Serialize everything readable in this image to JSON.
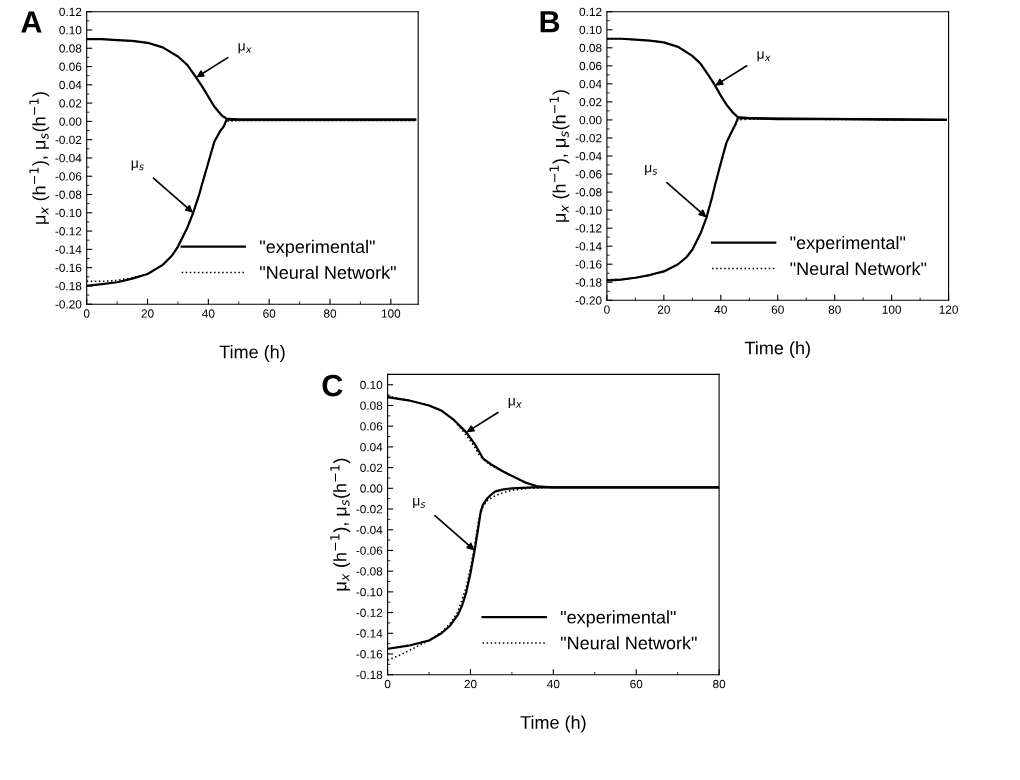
{
  "chart_data": [
    {
      "type": "line",
      "title": "A",
      "xlabel": "Time (h)",
      "ylabel": "μ$_{x}$ (h$^{−1}$), μ$_{s}$(h$^{−1}$)",
      "legend": "bottom right",
      "grid": false,
      "xlim": [
        0,
        109
      ],
      "xticks": [
        0,
        20,
        40,
        60,
        80,
        100
      ],
      "ylim": [
        -0.2,
        0.12
      ],
      "yticks": [
        {
          "value": -0.2,
          "label": "-0.20"
        },
        {
          "value": -0.18,
          "label": "-0.18"
        },
        {
          "value": -0.16,
          "label": "-0.16"
        },
        {
          "value": -0.14,
          "label": "-0.14"
        },
        {
          "value": -0.12,
          "label": "-0.12"
        },
        {
          "value": -0.1,
          "label": "-0.10"
        },
        {
          "value": -0.08,
          "label": "-0.08"
        },
        {
          "value": -0.06,
          "label": "-0.06"
        },
        {
          "value": -0.04,
          "label": "-0.04"
        },
        {
          "value": -0.02,
          "label": "-0.02"
        },
        {
          "value": 0,
          "label": "0.00"
        },
        {
          "value": 0.02,
          "label": "0.02"
        },
        {
          "value": 0.04,
          "label": "0.04"
        },
        {
          "value": 0.06,
          "label": "0.06"
        },
        {
          "value": 0.08,
          "label": "0.08"
        },
        {
          "value": 0.1,
          "label": "0.10"
        },
        {
          "value": 0.12,
          "label": "0.12"
        }
      ],
      "annotations": [
        {
          "text": "μ$_{x}$",
          "x": 36,
          "y": 0.048
        },
        {
          "text": "μ$_{s}$",
          "x": 35,
          "y": -0.1
        }
      ],
      "series": [
        {
          "name": "\"experimental\"",
          "color": "#000000",
          "line_style": "solid",
          "x": [
            0,
            5,
            10,
            15,
            20,
            25,
            30,
            33,
            36,
            38,
            40,
            42,
            44,
            45,
            46,
            50,
            60,
            80,
            108
          ],
          "values": [
            0.09,
            0.09,
            0.089,
            0.088,
            0.086,
            0.081,
            0.071,
            0.062,
            0.048,
            0.038,
            0.027,
            0.016,
            0.008,
            0.005,
            0.003,
            0.002,
            0.002,
            0.002,
            0.002
          ]
        },
        {
          "color": "#000000",
          "line_style": "solid",
          "x": [
            0,
            5,
            10,
            15,
            20,
            25,
            28,
            30,
            33,
            35,
            37,
            38,
            40,
            42,
            44,
            45,
            46,
            50,
            108
          ],
          "values": [
            -0.18,
            -0.178,
            -0.176,
            -0.172,
            -0.167,
            -0.157,
            -0.147,
            -0.137,
            -0.117,
            -0.1,
            -0.08,
            -0.068,
            -0.045,
            -0.022,
            -0.01,
            -0.006,
            0.002,
            0.002,
            0.002
          ]
        },
        {
          "name": "\"Neural Network\"",
          "color": "#000000",
          "line_style": "dotted",
          "x": [
            0,
            5,
            10,
            15,
            20,
            25,
            30,
            33,
            36,
            38,
            40,
            42,
            44,
            46,
            50,
            60,
            80,
            108
          ],
          "values": [
            0.09,
            0.09,
            0.089,
            0.088,
            0.086,
            0.081,
            0.071,
            0.062,
            0.048,
            0.038,
            0.027,
            0.016,
            0.008,
            0.002,
            0.001,
            0.001,
            0.001,
            0.001
          ]
        },
        {
          "color": "#000000",
          "line_style": "dotted",
          "x": [
            0,
            5,
            10,
            15,
            20,
            25,
            28,
            30,
            33,
            35,
            37,
            38,
            40,
            42,
            44,
            46,
            50,
            108
          ],
          "values": [
            -0.175,
            -0.175,
            -0.174,
            -0.171,
            -0.167,
            -0.157,
            -0.147,
            -0.137,
            -0.117,
            -0.1,
            -0.08,
            -0.068,
            -0.045,
            -0.022,
            -0.01,
            0.0,
            0.001,
            0.001
          ]
        }
      ]
    },
    {
      "type": "line",
      "title": "B",
      "xlabel": "Time (h)",
      "ylabel": "μ$_{x}$ (h$^{−1}$), μ$_{s}$(h$^{−1}$)",
      "legend": "bottom right",
      "grid": false,
      "xlim": [
        0,
        120
      ],
      "xticks": [
        0,
        20,
        40,
        60,
        80,
        100,
        120
      ],
      "ylim": [
        -0.2,
        0.12
      ],
      "yticks": [
        {
          "value": -0.2,
          "label": "-0.20"
        },
        {
          "value": -0.18,
          "label": "-0.18"
        },
        {
          "value": -0.16,
          "label": "-0.16"
        },
        {
          "value": -0.14,
          "label": "-0.14"
        },
        {
          "value": -0.12,
          "label": "-0.12"
        },
        {
          "value": -0.1,
          "label": "-0.10"
        },
        {
          "value": -0.08,
          "label": "-0.08"
        },
        {
          "value": -0.06,
          "label": "-0.06"
        },
        {
          "value": -0.04,
          "label": "-0.04"
        },
        {
          "value": -0.02,
          "label": "-0.02"
        },
        {
          "value": 0,
          "label": "0.00"
        },
        {
          "value": 0.02,
          "label": "0.02"
        },
        {
          "value": 0.04,
          "label": "0.04"
        },
        {
          "value": 0.06,
          "label": "0.06"
        },
        {
          "value": 0.08,
          "label": "0.08"
        },
        {
          "value": 0.1,
          "label": "0.10"
        },
        {
          "value": 0.12,
          "label": "0.12"
        }
      ],
      "annotations": [
        {
          "text": "μ$_{x}$",
          "x": 38,
          "y": 0.038
        },
        {
          "text": "μ$_{s}$",
          "x": 35,
          "y": -0.108
        }
      ],
      "series": [
        {
          "name": "\"experimental\"",
          "color": "#000000",
          "line_style": "solid",
          "x": [
            0,
            5,
            10,
            15,
            20,
            25,
            30,
            33,
            36,
            38,
            40,
            42,
            44,
            45,
            46,
            50,
            60,
            80,
            119
          ],
          "values": [
            0.09,
            0.09,
            0.089,
            0.088,
            0.086,
            0.081,
            0.071,
            0.062,
            0.048,
            0.038,
            0.027,
            0.017,
            0.009,
            0.006,
            0.003,
            0.002,
            0.001,
            0.001,
            0.0
          ]
        },
        {
          "color": "#000000",
          "line_style": "solid",
          "x": [
            0,
            5,
            10,
            15,
            20,
            25,
            28,
            30,
            33,
            35,
            37,
            38,
            40,
            42,
            44,
            45,
            46,
            50,
            119
          ],
          "values": [
            -0.178,
            -0.177,
            -0.175,
            -0.172,
            -0.168,
            -0.16,
            -0.152,
            -0.144,
            -0.125,
            -0.108,
            -0.085,
            -0.072,
            -0.048,
            -0.025,
            -0.012,
            -0.006,
            0.002,
            0.002,
            0.0
          ]
        },
        {
          "name": "\"Neural Network\"",
          "color": "#000000",
          "line_style": "dotted",
          "x": [
            0,
            5,
            10,
            15,
            20,
            25,
            30,
            33,
            36,
            38,
            40,
            42,
            44,
            46,
            50,
            60,
            80,
            119
          ],
          "values": [
            0.09,
            0.09,
            0.089,
            0.088,
            0.086,
            0.081,
            0.071,
            0.062,
            0.048,
            0.038,
            0.027,
            0.017,
            0.009,
            0.002,
            0.001,
            0.001,
            0.001,
            0.0
          ]
        },
        {
          "color": "#000000",
          "line_style": "dotted",
          "x": [
            0,
            5,
            10,
            15,
            20,
            25,
            28,
            30,
            33,
            35,
            37,
            38,
            40,
            42,
            44,
            46,
            50,
            119
          ],
          "values": [
            -0.177,
            -0.177,
            -0.175,
            -0.172,
            -0.168,
            -0.16,
            -0.152,
            -0.144,
            -0.125,
            -0.108,
            -0.085,
            -0.072,
            -0.048,
            -0.025,
            -0.012,
            0.0,
            0.001,
            0.0
          ]
        }
      ]
    },
    {
      "type": "line",
      "title": "C",
      "xlabel": "Time (h)",
      "ylabel": "μ$_{x}$ (h$^{−1}$), μ$_{s}$(h$^{−1}$)",
      "legend": "bottom right",
      "grid": false,
      "xlim": [
        0,
        80
      ],
      "xticks": [
        0,
        20,
        40,
        60,
        80
      ],
      "ylim": [
        -0.18,
        0.11
      ],
      "yticks": [
        {
          "value": -0.18,
          "label": "-0.18"
        },
        {
          "value": -0.16,
          "label": "-0.16"
        },
        {
          "value": -0.14,
          "label": "-0.14"
        },
        {
          "value": -0.12,
          "label": "-0.12"
        },
        {
          "value": -0.1,
          "label": "-0.10"
        },
        {
          "value": -0.08,
          "label": "-0.08"
        },
        {
          "value": -0.06,
          "label": "-0.06"
        },
        {
          "value": -0.04,
          "label": "-0.04"
        },
        {
          "value": -0.02,
          "label": "-0.02"
        },
        {
          "value": 0,
          "label": "0.00"
        },
        {
          "value": 0.02,
          "label": "0.02"
        },
        {
          "value": 0.04,
          "label": "0.04"
        },
        {
          "value": 0.06,
          "label": "0.06"
        },
        {
          "value": 0.08,
          "label": "0.08"
        },
        {
          "value": 0.1,
          "label": "0.10"
        }
      ],
      "annotations": [
        {
          "text": "μ$_{x}$",
          "x": 19,
          "y": 0.054
        },
        {
          "text": "μ$_{s}$",
          "x": 21,
          "y": -0.06
        }
      ],
      "series": [
        {
          "name": "\"experimental\"",
          "color": "#000000",
          "line_style": "solid",
          "x": [
            0,
            5,
            10,
            13,
            16,
            19,
            21,
            22,
            23,
            25,
            28,
            30,
            33,
            36,
            40,
            80
          ],
          "values": [
            0.088,
            0.085,
            0.08,
            0.075,
            0.066,
            0.054,
            0.043,
            0.036,
            0.029,
            0.023,
            0.016,
            0.012,
            0.006,
            0.002,
            0.001,
            0.001
          ]
        },
        {
          "color": "#000000",
          "line_style": "solid",
          "x": [
            0,
            5,
            8,
            10,
            13,
            15,
            17,
            18,
            19,
            20,
            21,
            22,
            22.5,
            23,
            24,
            25,
            26,
            28,
            30,
            35,
            80
          ],
          "values": [
            -0.155,
            -0.152,
            -0.149,
            -0.147,
            -0.14,
            -0.133,
            -0.122,
            -0.113,
            -0.1,
            -0.082,
            -0.06,
            -0.035,
            -0.022,
            -0.016,
            -0.01,
            -0.006,
            -0.003,
            -0.001,
            0.0,
            0.001,
            0.001
          ]
        },
        {
          "name": "\"Neural Network\"",
          "color": "#000000",
          "line_style": "dotted",
          "x": [
            0,
            5,
            10,
            13,
            16,
            19,
            21,
            22,
            23,
            25,
            28,
            30,
            33,
            36,
            40,
            80
          ],
          "values": [
            0.089,
            0.085,
            0.08,
            0.075,
            0.066,
            0.051,
            0.04,
            0.033,
            0.028,
            0.022,
            0.016,
            0.012,
            0.006,
            0.002,
            0.001,
            0.001
          ]
        },
        {
          "color": "#000000",
          "line_style": "dotted",
          "x": [
            0,
            3,
            5,
            8,
            10,
            13,
            15,
            17,
            19,
            20,
            21,
            22,
            23,
            24,
            26,
            28,
            30,
            34,
            40,
            80
          ],
          "values": [
            -0.166,
            -0.161,
            -0.157,
            -0.151,
            -0.147,
            -0.139,
            -0.131,
            -0.119,
            -0.095,
            -0.077,
            -0.055,
            -0.03,
            -0.018,
            -0.012,
            -0.007,
            -0.004,
            -0.002,
            0.0,
            0.001,
            0.001
          ]
        }
      ]
    }
  ]
}
